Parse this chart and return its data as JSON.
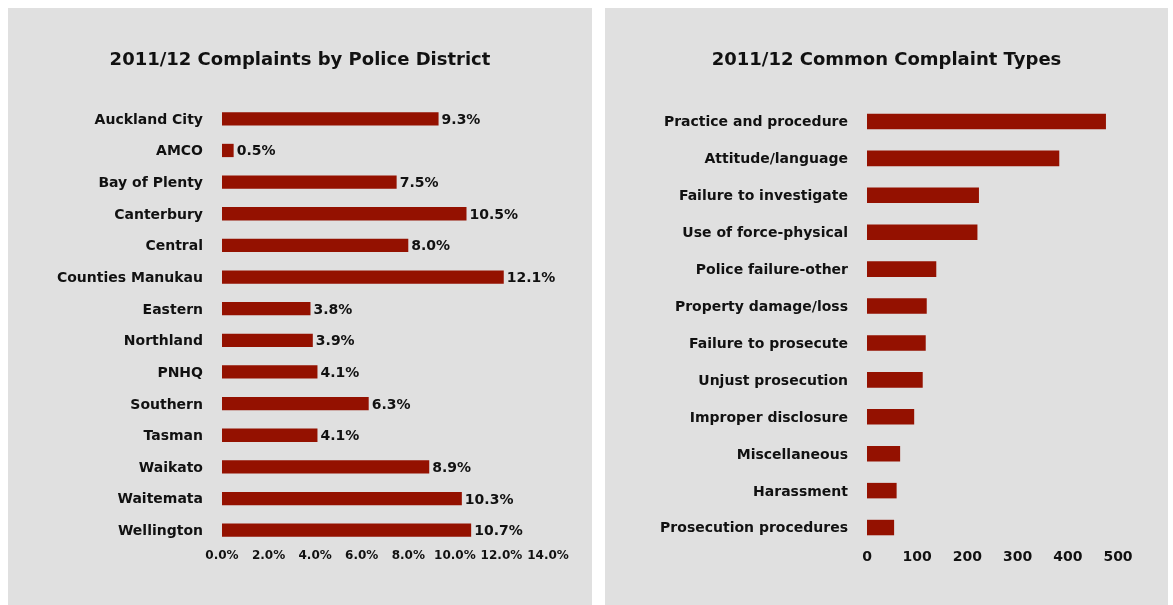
{
  "chart_data": [
    {
      "type": "bar",
      "orientation": "horizontal",
      "title": "2011/12 Complaints by Police District",
      "categories": [
        "Auckland City",
        "AMCO",
        "Bay of Plenty",
        "Canterbury",
        "Central",
        "Counties Manukau",
        "Eastern",
        "Northland",
        "PNHQ",
        "Southern",
        "Tasman",
        "Waikato",
        "Waitemata",
        "Wellington"
      ],
      "values": [
        9.3,
        0.5,
        7.5,
        10.5,
        8.0,
        12.1,
        3.8,
        3.9,
        4.1,
        6.3,
        4.1,
        8.9,
        10.3,
        10.7
      ],
      "value_labels": [
        "9.3%",
        "0.5%",
        "7.5%",
        "10.5%",
        "8.0%",
        "12.1%",
        "3.8%",
        "3.9%",
        "4.1%",
        "6.3%",
        "4.1%",
        "8.9%",
        "10.3%",
        "10.7%"
      ],
      "color": "#941100",
      "xlim": [
        0,
        14
      ],
      "xticks": [
        {
          "value": 0,
          "label": "0.0%"
        },
        {
          "value": 2,
          "label": "2.0%"
        },
        {
          "value": 4,
          "label": "4.0%"
        },
        {
          "value": 6,
          "label": "6.0%"
        },
        {
          "value": 8,
          "label": "8.0%"
        },
        {
          "value": 10,
          "label": "10.0%"
        },
        {
          "value": 12,
          "label": "12.0%"
        },
        {
          "value": 14,
          "label": "14.0%"
        }
      ],
      "grid": false
    },
    {
      "type": "bar",
      "orientation": "horizontal",
      "title": "2011/12 Common Complaint Types",
      "categories": [
        "Practice and procedure",
        "Attitude/language",
        "Failure to investigate",
        "Use of force-physical",
        "Police failure-other",
        "Property damage/loss",
        "Failure to prosecute",
        "Unjust prosecution",
        "Improper disclosure",
        "Miscellaneous",
        "Harassment",
        "Prosecution procedures"
      ],
      "values": [
        476,
        383,
        223,
        220,
        138,
        119,
        117,
        111,
        94,
        66,
        59,
        54
      ],
      "color": "#941100",
      "xlim": [
        0,
        500
      ],
      "xticks": [
        0,
        100,
        200,
        300,
        400,
        500
      ],
      "grid": false
    }
  ]
}
